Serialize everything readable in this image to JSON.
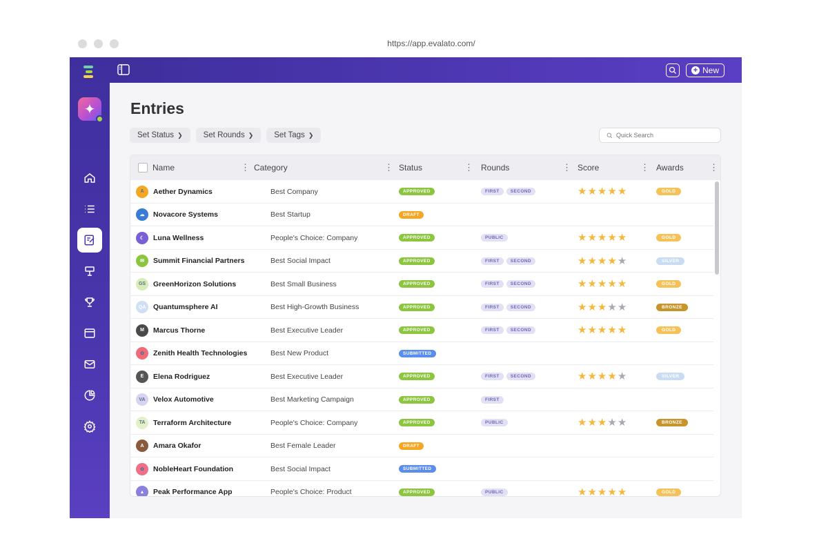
{
  "browser": {
    "url": "https://app.evalato.com/"
  },
  "topbar": {
    "new_label": "New"
  },
  "page": {
    "title": "Entries"
  },
  "filters": [
    {
      "label": "Set Status"
    },
    {
      "label": "Set Rounds"
    },
    {
      "label": "Set Tags"
    }
  ],
  "search": {
    "placeholder": "Quick Search"
  },
  "table": {
    "headers": {
      "name": "Name",
      "category": "Category",
      "status": "Status",
      "rounds": "Rounds",
      "score": "Score",
      "awards": "Awards"
    },
    "rows": [
      {
        "name": "Aether Dynamics",
        "category": "Best Company",
        "status": "APPROVED",
        "rounds": [
          "FIRST",
          "SECOND"
        ],
        "score": 5,
        "award": "GOLD",
        "avatar": "A",
        "avatar_color": "#f5a623"
      },
      {
        "name": "Novacore Systems",
        "category": "Best Startup",
        "status": "DRAFT",
        "rounds": [],
        "score": 0,
        "award": "",
        "avatar": "☁",
        "avatar_color": "#3a7bd5"
      },
      {
        "name": "Luna Wellness",
        "category": "People's Choice: Company",
        "status": "APPROVED",
        "rounds": [
          "PUBLIC"
        ],
        "score": 5,
        "award": "GOLD",
        "avatar": "☾",
        "avatar_color": "#7b5fd6"
      },
      {
        "name": "Summit Financial Partners",
        "category": "Best Social Impact",
        "status": "APPROVED",
        "rounds": [
          "FIRST",
          "SECOND"
        ],
        "score": 4,
        "award": "SILVER",
        "avatar": "✉",
        "avatar_color": "#8cc63f"
      },
      {
        "name": "GreenHorizon Solutions",
        "category": "Best Small Business",
        "status": "APPROVED",
        "rounds": [
          "FIRST",
          "SECOND"
        ],
        "score": 5,
        "award": "GOLD",
        "avatar": "GS",
        "avatar_color": "#d8ecb8"
      },
      {
        "name": "Quantumsphere AI",
        "category": "Best High-Growth Business",
        "status": "APPROVED",
        "rounds": [
          "FIRST",
          "SECOND"
        ],
        "score": 3,
        "award": "BRONZE",
        "avatar": "QA",
        "avatar_color": "#cfe0f5"
      },
      {
        "name": "Marcus Thorne",
        "category": "Best Executive Leader",
        "status": "APPROVED",
        "rounds": [
          "FIRST",
          "SECOND"
        ],
        "score": 5,
        "award": "GOLD",
        "avatar": "M",
        "avatar_color": "#4a4a4a"
      },
      {
        "name": "Zenith Health Technologies",
        "category": "Best New Product",
        "status": "SUBMITTED",
        "rounds": [],
        "score": 0,
        "award": "",
        "avatar": "✿",
        "avatar_color": "#f06a7a"
      },
      {
        "name": "Elena Rodriguez",
        "category": "Best Executive Leader",
        "status": "APPROVED",
        "rounds": [
          "FIRST",
          "SECOND"
        ],
        "score": 4,
        "award": "SILVER",
        "avatar": "E",
        "avatar_color": "#555555"
      },
      {
        "name": "Velox Automotive",
        "category": "Best Marketing Campaign",
        "status": "APPROVED",
        "rounds": [
          "FIRST"
        ],
        "score": 0,
        "award": "",
        "avatar": "VA",
        "avatar_color": "#d9d3f2"
      },
      {
        "name": "Terraform Architecture",
        "category": "People's Choice: Company",
        "status": "APPROVED",
        "rounds": [
          "PUBLIC"
        ],
        "score": 3,
        "award": "BRONZE",
        "avatar": "TA",
        "avatar_color": "#e3f1c8"
      },
      {
        "name": "Amara Okafor",
        "category": "Best Female Leader",
        "status": "DRAFT",
        "rounds": [],
        "score": 0,
        "award": "",
        "avatar": "A",
        "avatar_color": "#8a5a3c"
      },
      {
        "name": "NobleHeart Foundation",
        "category": "Best Social Impact",
        "status": "SUBMITTED",
        "rounds": [],
        "score": 0,
        "award": "",
        "avatar": "✿",
        "avatar_color": "#ef6f88"
      },
      {
        "name": "Peak Performance App",
        "category": "People's Choice: Product",
        "status": "APPROVED",
        "rounds": [
          "PUBLIC"
        ],
        "score": 5,
        "award": "GOLD",
        "avatar": "▲",
        "avatar_color": "#8b7fe0"
      }
    ]
  },
  "colors": {
    "approved": "#8cc63f",
    "draft": "#f5a623",
    "submitted": "#5b8def",
    "gold": "#f5c25a",
    "silver": "#c9dcf2",
    "bronze": "#c8952c",
    "star_on": "#f5b83d",
    "star_off": "#a9a9b3"
  }
}
